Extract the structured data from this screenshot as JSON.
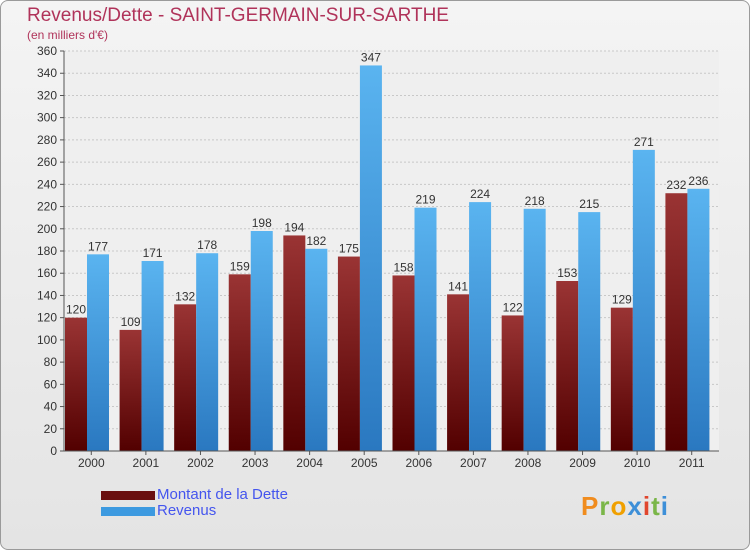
{
  "chart_data": {
    "type": "bar",
    "title": "Revenus/Dette - SAINT-GERMAIN-SUR-SARTHE",
    "subtitle": "(en milliers d'€)",
    "categories": [
      "2000",
      "2001",
      "2002",
      "2003",
      "2004",
      "2005",
      "2006",
      "2007",
      "2008",
      "2009",
      "2010",
      "2011"
    ],
    "series": [
      {
        "name": "Montant de la Dette",
        "color": "#7a1a1a",
        "values": [
          120,
          109,
          132,
          159,
          194,
          175,
          158,
          141,
          122,
          153,
          129,
          232
        ]
      },
      {
        "name": "Revenus",
        "color": "#3d9ae0",
        "values": [
          177,
          171,
          178,
          198,
          182,
          347,
          219,
          224,
          218,
          215,
          271,
          236
        ]
      }
    ],
    "ylim": [
      0,
      360
    ],
    "ytick_step": 20,
    "grid": true,
    "legend_position": "bottom-left"
  },
  "logo": {
    "text": "Proxiti",
    "colors": [
      "#f08c1e",
      "#7ab648",
      "#f0a000",
      "#3d8fd8",
      "#e0462e",
      "#7ab648",
      "#3d8fd8"
    ]
  }
}
